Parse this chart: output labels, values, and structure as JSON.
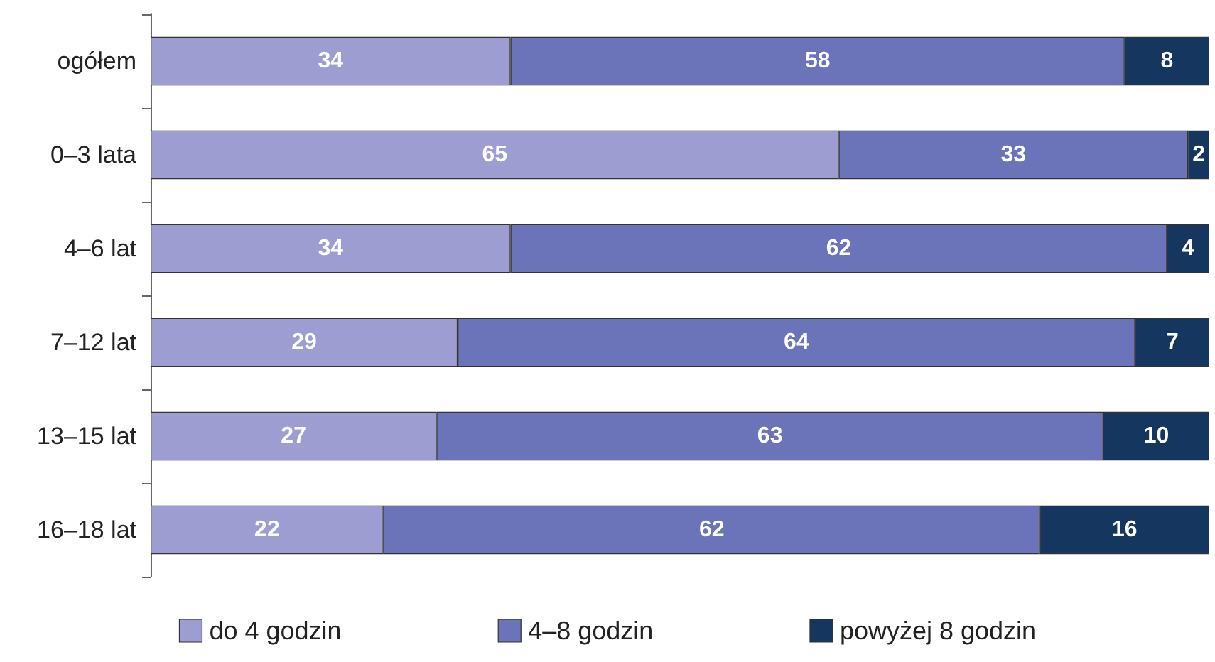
{
  "chart_data": {
    "type": "bar",
    "orientation": "horizontal",
    "stacked": true,
    "data_labels": true,
    "legend": "bottom",
    "categories": [
      "ogółem",
      "0–3 lata",
      "4–6 lat",
      "7–12 lat",
      "13–15 lat",
      "16–18 lat"
    ],
    "series": [
      {
        "name": "do 4 godzin",
        "color": "#9d9dd1",
        "values": [
          34,
          65,
          34,
          29,
          27,
          22
        ]
      },
      {
        "name": "4–8 godzin",
        "color": "#6b73b9",
        "values": [
          58,
          33,
          62,
          64,
          63,
          62
        ]
      },
      {
        "name": "powyżej 8 godzin",
        "color": "#15375f",
        "values": [
          8,
          2,
          4,
          7,
          10,
          16
        ]
      }
    ]
  }
}
